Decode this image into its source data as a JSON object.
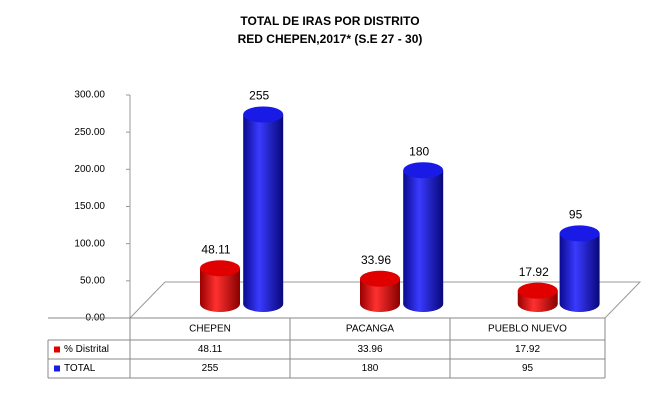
{
  "chart_data": {
    "type": "bar",
    "title": "TOTAL DE IRAS POR DISTRITO",
    "subtitle": "RED CHEPEN,2017* (S.E 27 - 30)",
    "categories": [
      "CHEPEN",
      "PACANGA",
      "PUEBLO NUEVO"
    ],
    "series": [
      {
        "name": "% Distrital",
        "color": "#e00000",
        "values": [
          48.11,
          33.96,
          17.92
        ]
      },
      {
        "name": "TOTAL",
        "color": "#1a1ae6",
        "values": [
          255,
          180,
          95
        ]
      }
    ],
    "ylim": [
      0,
      300
    ],
    "yticks": [
      {
        "value": 0,
        "label": "0.00"
      },
      {
        "value": 50,
        "label": "50.00"
      },
      {
        "value": 100,
        "label": "100.00"
      },
      {
        "value": 150,
        "label": "150.00"
      },
      {
        "value": 200,
        "label": "200.00"
      },
      {
        "value": 250,
        "label": "250.00"
      },
      {
        "value": 300,
        "label": "300.00"
      }
    ]
  }
}
